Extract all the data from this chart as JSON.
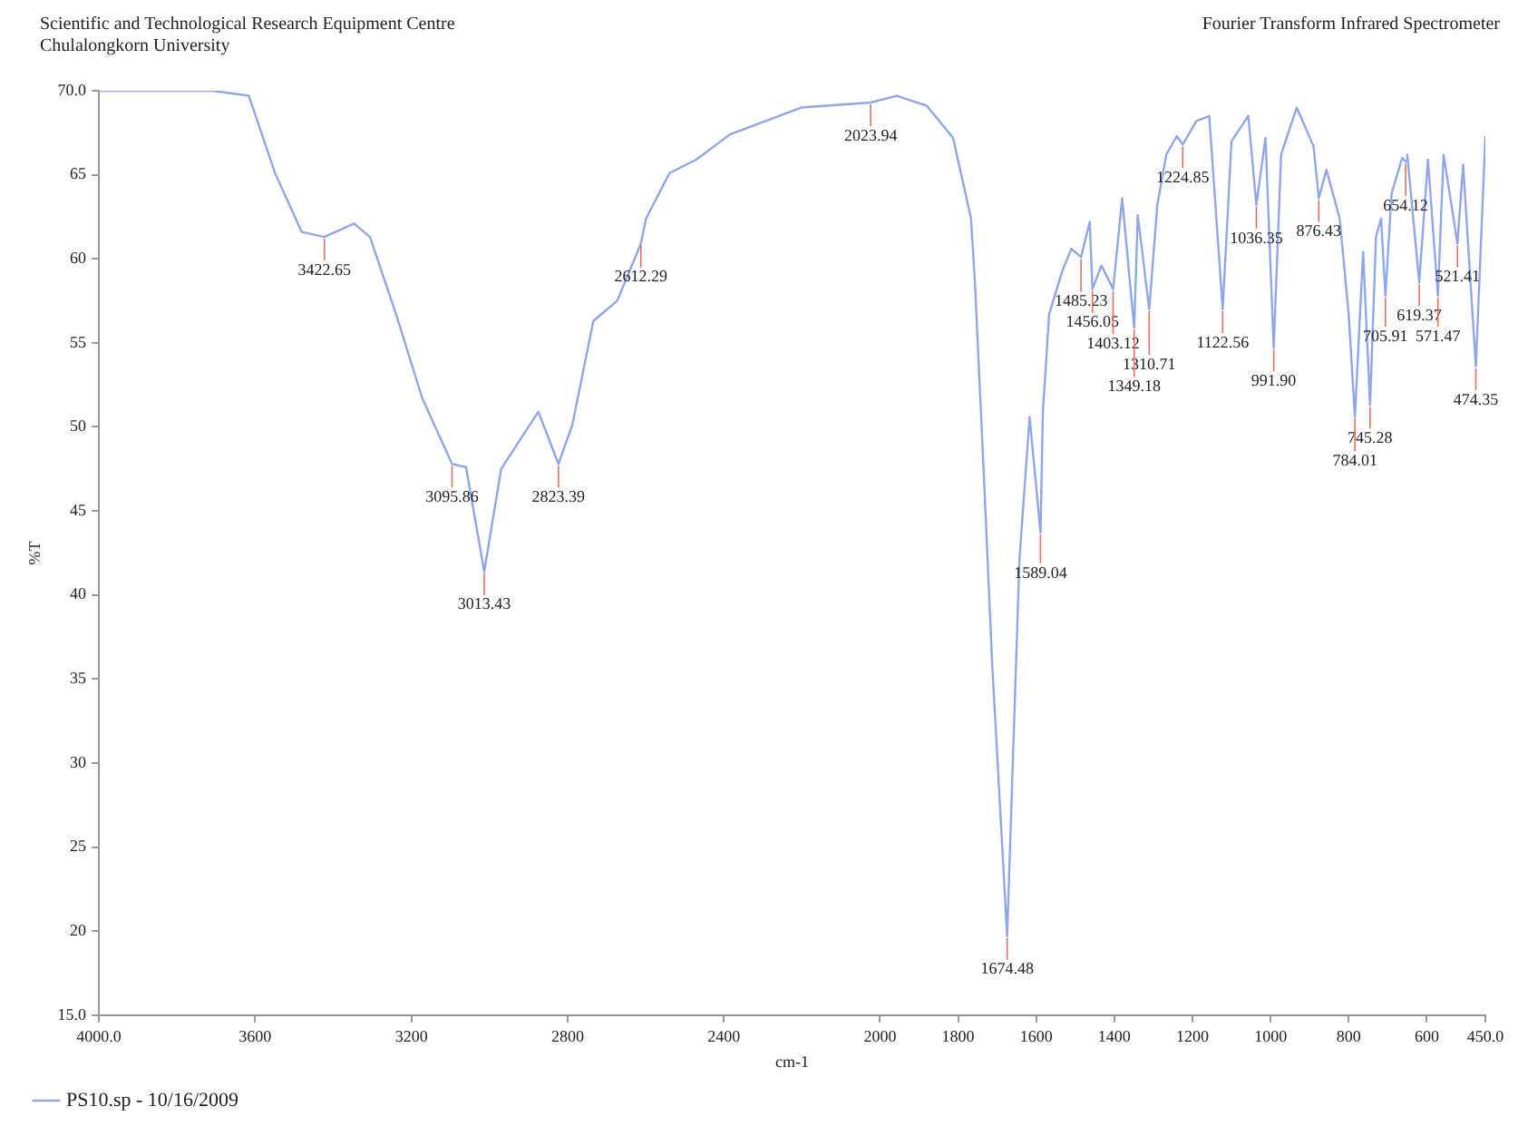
{
  "chart_data": {
    "type": "line",
    "title": "Scientific and Technological Research Equipment Centre",
    "subtitle": "Chulalongkorn University",
    "xlabel": "cm-1",
    "ylabel": "%T",
    "grid": false,
    "legend": "bottom",
    "marker": "none",
    "xlim": [
      4000,
      450
    ],
    "xticks": [
      {
        "value": 4000,
        "label": "4000.0"
      },
      3600,
      3200,
      2800,
      2400,
      2000,
      1800,
      1600,
      1400,
      1200,
      1000,
      800,
      600,
      {
        "value": 450,
        "label": "450.0"
      }
    ],
    "ylim": [
      15,
      70
    ],
    "yticks": [
      {
        "value": 70,
        "label": "70.0"
      },
      65,
      60,
      55,
      50,
      45,
      40,
      35,
      30,
      25,
      20,
      {
        "value": 15,
        "label": "15.0"
      }
    ],
    "series": [
      {
        "name": "PS10.sp - 10/16/2009",
        "color": "#8fa6ea",
        "x": [
          4000,
          3710,
          3616,
          3549,
          3481,
          3422.65,
          3347,
          3306,
          3239,
          3172,
          3095.86,
          3060,
          3013.43,
          2970,
          2875,
          2823.39,
          2788,
          2734,
          2673,
          2612.29,
          2599,
          2539,
          2471,
          2384,
          2202,
          2023.94,
          1957,
          1880,
          1813,
          1767,
          1757,
          1734,
          1713,
          1674.48,
          1643,
          1617,
          1589.04,
          1583,
          1567,
          1533,
          1510,
          1485.23,
          1463,
          1456.05,
          1433,
          1403.12,
          1380,
          1349.18,
          1340,
          1310.71,
          1290,
          1267,
          1240,
          1224.85,
          1190,
          1157,
          1122.56,
          1100,
          1057,
          1036.35,
          1013,
          991.9,
          973,
          933,
          890,
          876.43,
          857,
          823,
          800,
          784.01,
          763,
          745.28,
          730,
          717,
          705.91,
          690,
          663,
          654.12,
          650,
          619.37,
          597,
          571.47,
          557,
          521.41,
          507,
          474.35,
          450
        ],
        "values": [
          70,
          70,
          69.7,
          65.1,
          61.6,
          61.3,
          62.1,
          61.3,
          56.7,
          51.7,
          47.8,
          47.6,
          41.4,
          47.5,
          50.9,
          47.8,
          50.1,
          56.3,
          57.5,
          60.9,
          62.4,
          65.1,
          65.9,
          67.4,
          69,
          69.3,
          69.7,
          69.1,
          67.2,
          62.4,
          58.6,
          47.1,
          36,
          19.7,
          42.1,
          50.6,
          43.7,
          50.9,
          56.7,
          59.3,
          60.6,
          60.1,
          62.2,
          58.2,
          59.6,
          58.2,
          63.6,
          55.9,
          62.6,
          57,
          63.2,
          66.2,
          67.3,
          66.8,
          68.2,
          68.5,
          57,
          67,
          68.5,
          63.2,
          67.2,
          54.7,
          66.2,
          69,
          66.7,
          63.6,
          65.3,
          62.4,
          56.7,
          50.6,
          60.4,
          51.3,
          61.3,
          62.4,
          57.8,
          63.9,
          66,
          65.8,
          66.2,
          58.6,
          65.9,
          57.8,
          66.2,
          60.9,
          65.6,
          53.6,
          67.3
        ]
      }
    ],
    "annotations": [
      "Fourier Transform Infrared Spectrometer",
      {
        "text": "3422.65",
        "x": 3422.65,
        "y": 61.3
      },
      {
        "text": "3095.86",
        "x": 3095.86,
        "y": 47.8
      },
      {
        "text": "3013.43",
        "x": 3013.43,
        "y": 41.4
      },
      {
        "text": "2823.39",
        "x": 2823.39,
        "y": 47.8
      },
      {
        "text": "2612.29",
        "x": 2612.29,
        "y": 60.9
      },
      {
        "text": "2023.94",
        "x": 2023.94,
        "y": 69.3
      },
      {
        "text": "1674.48",
        "x": 1674.48,
        "y": 19.7
      },
      {
        "text": "1589.04",
        "x": 1589.04,
        "y": 43.7
      },
      {
        "text": "1485.23",
        "x": 1485.23,
        "y": 60.1
      },
      {
        "text": "1456.05",
        "x": 1456.05,
        "y": 58.2
      },
      {
        "text": "1403.12",
        "x": 1403.12,
        "y": 58.2
      },
      {
        "text": "1349.18",
        "x": 1349.18,
        "y": 55.9
      },
      {
        "text": "1310.71",
        "x": 1310.71,
        "y": 57
      },
      {
        "text": "1224.85",
        "x": 1224.85,
        "y": 66.8
      },
      {
        "text": "1122.56",
        "x": 1122.56,
        "y": 57
      },
      {
        "text": "1036.35",
        "x": 1036.35,
        "y": 63.2
      },
      {
        "text": "991.90",
        "x": 991.9,
        "y": 54.7
      },
      {
        "text": "876.43",
        "x": 876.43,
        "y": 63.6
      },
      {
        "text": "784.01",
        "x": 784.01,
        "y": 50.6
      },
      {
        "text": "745.28",
        "x": 745.28,
        "y": 51.3
      },
      {
        "text": "705.91",
        "x": 705.91,
        "y": 57.8
      },
      {
        "text": "654.12",
        "x": 654.12,
        "y": 65.8
      },
      {
        "text": "619.37",
        "x": 619.37,
        "y": 58.6
      },
      {
        "text": "571.47",
        "x": 571.47,
        "y": 57.8
      },
      {
        "text": "521.41",
        "x": 521.41,
        "y": 60.9
      },
      {
        "text": "474.35",
        "x": 474.35,
        "y": 53.6
      }
    ]
  }
}
